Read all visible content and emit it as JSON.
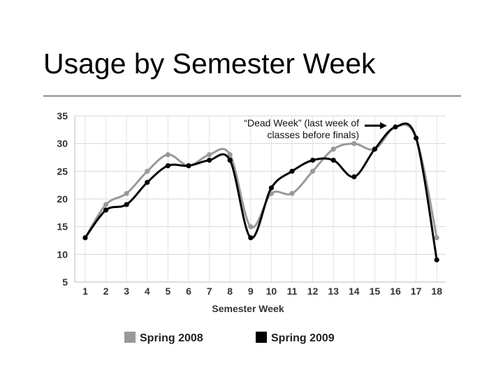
{
  "slide": {
    "title": "Usage by Semester Week"
  },
  "chart_data": {
    "type": "line",
    "title": "",
    "xlabel": "Semester Week",
    "ylabel": "",
    "x": [
      1,
      2,
      3,
      4,
      5,
      6,
      7,
      8,
      9,
      10,
      11,
      12,
      13,
      14,
      15,
      16,
      17,
      18
    ],
    "ylim": [
      5,
      35
    ],
    "yticks": [
      5,
      10,
      15,
      20,
      25,
      30,
      35
    ],
    "grid": true,
    "legend_position": "bottom",
    "series": [
      {
        "name": "Spring 2008",
        "color": "#999999",
        "values": [
          13,
          19,
          21,
          25,
          28,
          26,
          28,
          28,
          15,
          21,
          21,
          25,
          29,
          30,
          29,
          33,
          31,
          13
        ]
      },
      {
        "name": "Spring 2009",
        "color": "#000000",
        "values": [
          13,
          18,
          19,
          23,
          26,
          26,
          27,
          27,
          13,
          22,
          25,
          27,
          27,
          24,
          29,
          33,
          31,
          9
        ]
      }
    ],
    "annotations": [
      {
        "lines": [
          "“Dead Week” (last week of",
          "classes before finals)"
        ],
        "points_to_week": 16
      }
    ]
  }
}
